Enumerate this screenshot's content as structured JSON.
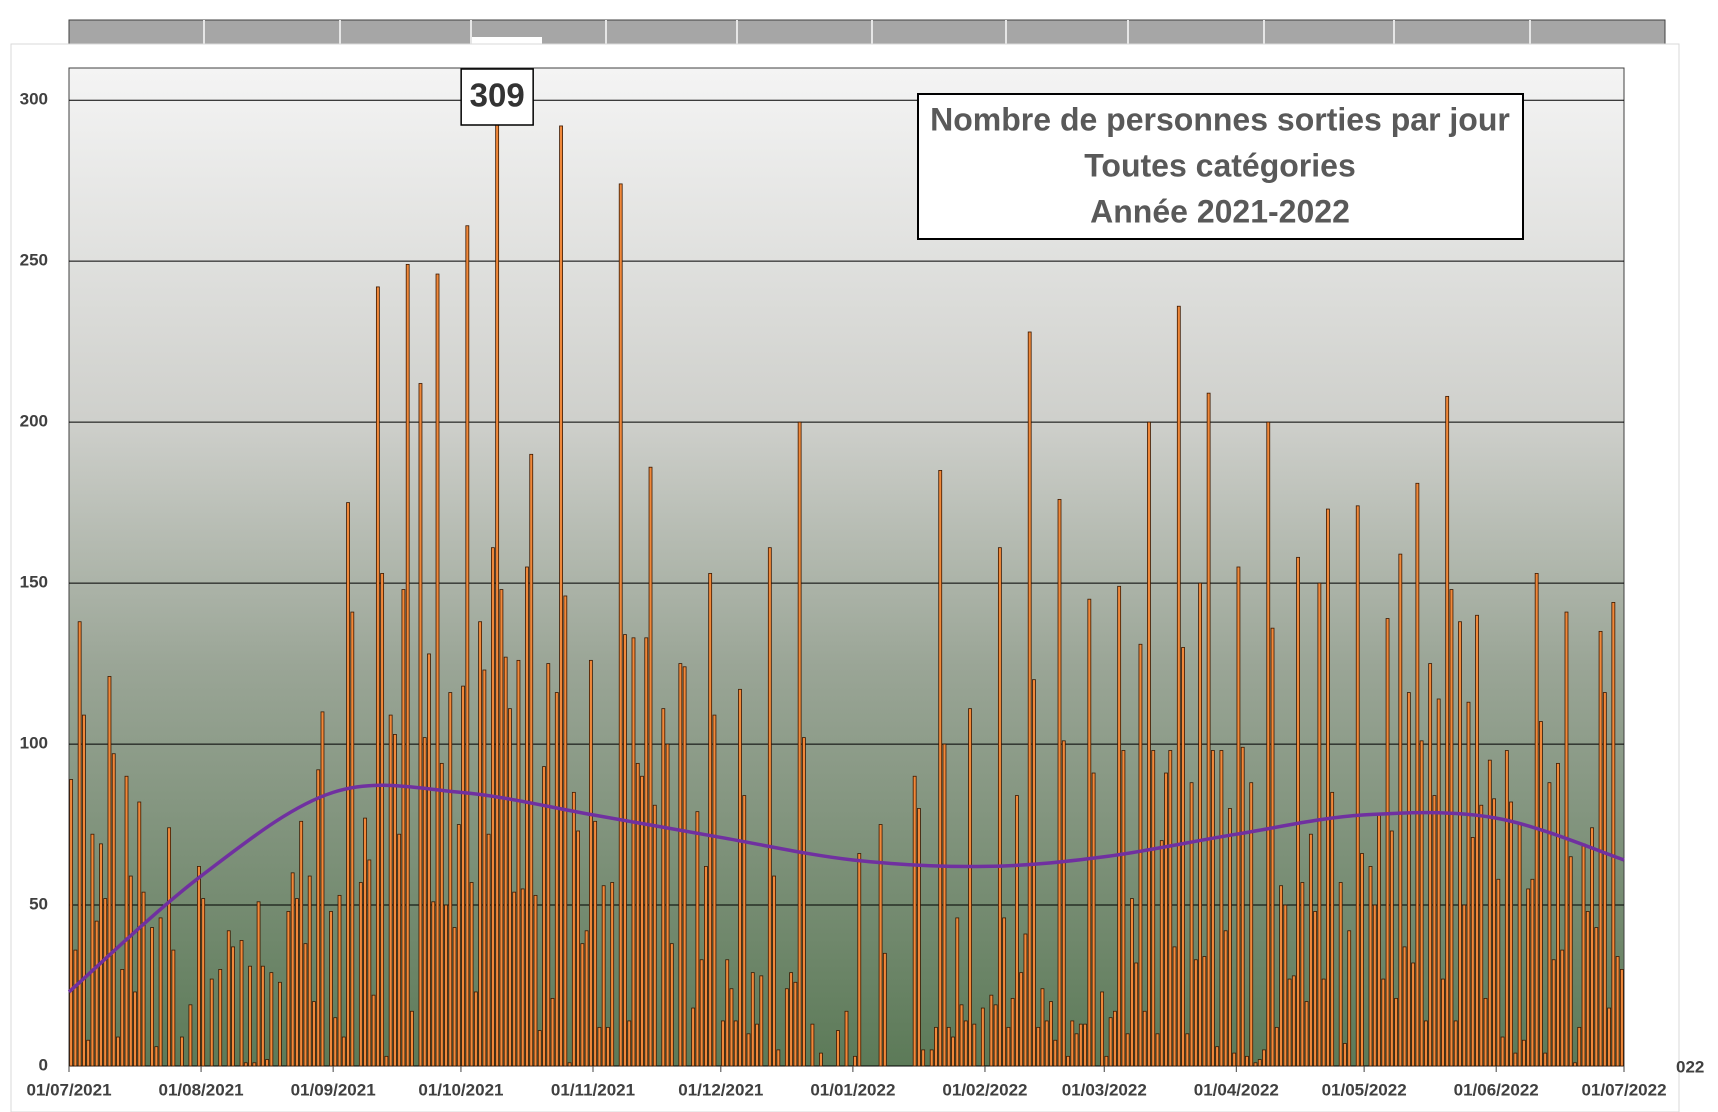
{
  "chart_data": {
    "type": "bar",
    "title": [
      "Nombre de personnes sorties par jour",
      "Toutes catégories",
      "Année 2021-2022"
    ],
    "edge_text": "022",
    "color": "#f0883a",
    "max_label": true,
    "grid": true,
    "ylim": [
      0,
      310
    ],
    "yticks": [
      0,
      50,
      100,
      150,
      200,
      250,
      300
    ],
    "categories": [
      "01/07/2021",
      null,
      null,
      null,
      null,
      null,
      null,
      null,
      null,
      null,
      null,
      null,
      null,
      null,
      null,
      null,
      null,
      null,
      null,
      null,
      null,
      null,
      null,
      null,
      null,
      null,
      null,
      null,
      null,
      null,
      null,
      "01/08/2021",
      null,
      null,
      null,
      null,
      null,
      null,
      null,
      null,
      null,
      null,
      null,
      null,
      null,
      null,
      null,
      null,
      null,
      null,
      null,
      null,
      null,
      null,
      null,
      null,
      null,
      null,
      null,
      null,
      null,
      null,
      "01/09/2021",
      null,
      null,
      null,
      null,
      null,
      null,
      null,
      null,
      null,
      null,
      null,
      null,
      null,
      null,
      null,
      null,
      null,
      null,
      null,
      null,
      null,
      null,
      null,
      null,
      null,
      null,
      null,
      null,
      null,
      "01/10/2021",
      null,
      null,
      null,
      null,
      null,
      null,
      null,
      null,
      null,
      null,
      null,
      null,
      null,
      null,
      null,
      null,
      null,
      null,
      null,
      null,
      null,
      null,
      null,
      null,
      null,
      null,
      null,
      null,
      null,
      null,
      "01/11/2021",
      null,
      null,
      null,
      null,
      null,
      null,
      null,
      null,
      null,
      null,
      null,
      null,
      null,
      null,
      null,
      null,
      null,
      null,
      null,
      null,
      null,
      null,
      null,
      null,
      null,
      null,
      null,
      null,
      null,
      "01/12/2021",
      null,
      null,
      null,
      null,
      null,
      null,
      null,
      null,
      null,
      null,
      null,
      null,
      null,
      null,
      null,
      null,
      null,
      null,
      null,
      null,
      null,
      null,
      null,
      null,
      null,
      null,
      null,
      null,
      null,
      null,
      "01/01/2022",
      null,
      null,
      null,
      null,
      null,
      null,
      null,
      null,
      null,
      null,
      null,
      null,
      null,
      null,
      null,
      null,
      null,
      null,
      null,
      null,
      null,
      null,
      null,
      null,
      null,
      null,
      null,
      null,
      null,
      null,
      "01/02/2022",
      null,
      null,
      null,
      null,
      null,
      null,
      null,
      null,
      null,
      null,
      null,
      null,
      null,
      null,
      null,
      null,
      null,
      null,
      null,
      null,
      null,
      null,
      null,
      null,
      null,
      null,
      null,
      "01/03/2022",
      null,
      null,
      null,
      null,
      null,
      null,
      null,
      null,
      null,
      null,
      null,
      null,
      null,
      null,
      null,
      null,
      null,
      null,
      null,
      null,
      null,
      null,
      null,
      null,
      null,
      null,
      null,
      null,
      null,
      null,
      "01/04/2022",
      null,
      null,
      null,
      null,
      null,
      null,
      null,
      null,
      null,
      null,
      null,
      null,
      null,
      null,
      null,
      null,
      null,
      null,
      null,
      null,
      null,
      null,
      null,
      null,
      null,
      null,
      null,
      null,
      null,
      "01/05/2022",
      null,
      null,
      null,
      null,
      null,
      null,
      null,
      null,
      null,
      null,
      null,
      null,
      null,
      null,
      null,
      null,
      null,
      null,
      null,
      null,
      null,
      null,
      null,
      null,
      null,
      null,
      null,
      null,
      null,
      null,
      "01/06/2022",
      null,
      null,
      null,
      null,
      null,
      null,
      null,
      null,
      null,
      null,
      null,
      null,
      null,
      null,
      null,
      null,
      null,
      null,
      null,
      null,
      null,
      null,
      null,
      null,
      null,
      null,
      null,
      null,
      null,
      "01/07/2022"
    ],
    "values": [
      89,
      36,
      138,
      109,
      8,
      72,
      45,
      69,
      52,
      121,
      97,
      9,
      30,
      90,
      59,
      23,
      82,
      54,
      0,
      43,
      6,
      46,
      0,
      74,
      36,
      0,
      9,
      0,
      19,
      0,
      62,
      52,
      0,
      27,
      0,
      30,
      0,
      42,
      37,
      0,
      39,
      1,
      31,
      1,
      51,
      31,
      2,
      29,
      0,
      26,
      0,
      48,
      60,
      52,
      76,
      38,
      59,
      20,
      92,
      110,
      0,
      48,
      15,
      53,
      9,
      175,
      141,
      0,
      57,
      77,
      64,
      22,
      242,
      153,
      3,
      109,
      103,
      72,
      148,
      249,
      17,
      0,
      212,
      102,
      128,
      51,
      246,
      94,
      50,
      116,
      43,
      75,
      118,
      261,
      57,
      23,
      138,
      123,
      72,
      161,
      309,
      148,
      127,
      111,
      54,
      126,
      55,
      155,
      190,
      53,
      11,
      93,
      125,
      21,
      116,
      292,
      146,
      1,
      85,
      73,
      38,
      42,
      126,
      76,
      12,
      56,
      12,
      57,
      0,
      274,
      134,
      14,
      133,
      94,
      90,
      133,
      186,
      81,
      0,
      111,
      100,
      38,
      0,
      125,
      124,
      0,
      18,
      79,
      33,
      62,
      153,
      109,
      0,
      14,
      33,
      24,
      14,
      117,
      84,
      10,
      29,
      13,
      28,
      0,
      161,
      59,
      5,
      0,
      24,
      29,
      26,
      200,
      102,
      0,
      13,
      0,
      4,
      0,
      0,
      0,
      11,
      0,
      17,
      0,
      3,
      66,
      0,
      0,
      0,
      0,
      75,
      35,
      0,
      0,
      0,
      0,
      0,
      0,
      90,
      80,
      5,
      0,
      5,
      12,
      185,
      100,
      12,
      9,
      46,
      19,
      14,
      111,
      13,
      0,
      18,
      0,
      22,
      19,
      161,
      46,
      12,
      21,
      84,
      29,
      41,
      228,
      120,
      12,
      24,
      14,
      20,
      8,
      176,
      101,
      3,
      14,
      10,
      13,
      13,
      145,
      91,
      0,
      23,
      3,
      15,
      17,
      149,
      98,
      10,
      52,
      32,
      131,
      17,
      200,
      98,
      10,
      70,
      91,
      98,
      37,
      236,
      130,
      10,
      88,
      33,
      150,
      34,
      209,
      98,
      6,
      98,
      42,
      80,
      4,
      155,
      99,
      3,
      88,
      1,
      2,
      5,
      200,
      136,
      12,
      56,
      50,
      27,
      28,
      158,
      57,
      20,
      72,
      48,
      150,
      27,
      173,
      85,
      0,
      57,
      7,
      42,
      0,
      174,
      66,
      0,
      62,
      50,
      78,
      27,
      139,
      73,
      21,
      159,
      37,
      116,
      32,
      181,
      101,
      14,
      125,
      84,
      114,
      27,
      208,
      148,
      14,
      138,
      50,
      113,
      71,
      140,
      81,
      21,
      95,
      83,
      58,
      9,
      98,
      82,
      4,
      75,
      8,
      55,
      58,
      153,
      107,
      4,
      88,
      33,
      94,
      36,
      141,
      65,
      1,
      12,
      69,
      48,
      74,
      43,
      135,
      116,
      18,
      144,
      34,
      30,
      null
    ],
    "trend": {
      "color": "#7030a0",
      "x": [
        "01/07/2021",
        "01/08/2021",
        "01/09/2021",
        "01/10/2021",
        "01/11/2021",
        "01/12/2021",
        "01/01/2022",
        "01/02/2022",
        "01/03/2022",
        "01/04/2022",
        "01/05/2022",
        "01/06/2022",
        "01/07/2022"
      ],
      "values": [
        23,
        59,
        85,
        85,
        78,
        71,
        64,
        62,
        65,
        72,
        78,
        77,
        64
      ]
    }
  }
}
